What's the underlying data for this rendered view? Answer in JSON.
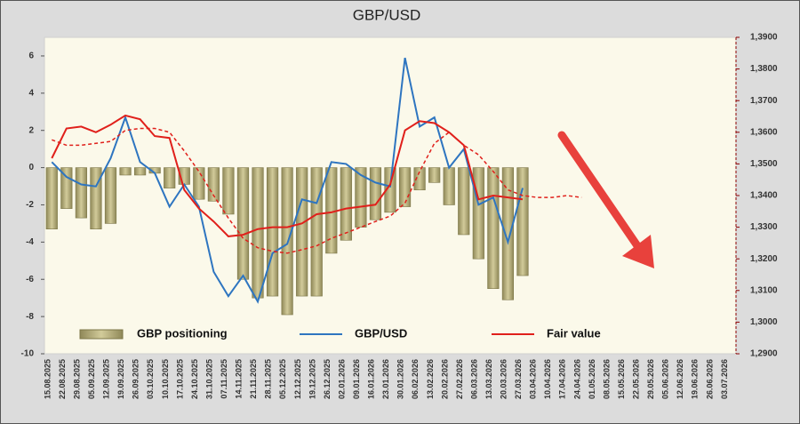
{
  "chart_data": {
    "type": "bar_line",
    "title": "GBP/USD",
    "categories": [
      "15.08.2025",
      "22.08.2025",
      "29.08.2025",
      "05.09.2025",
      "12.09.2025",
      "19.09.2025",
      "26.09.2025",
      "03.10.2025",
      "10.10.2025",
      "17.10.2025",
      "24.10.2025",
      "31.10.2025",
      "07.11.2025",
      "14.11.2025",
      "21.11.2025",
      "28.11.2025",
      "05.12.2025",
      "12.12.2025",
      "19.12.2025",
      "26.12.2025",
      "02.01.2026",
      "09.01.2026",
      "16.01.2026",
      "23.01.2026",
      "30.01.2026",
      "06.02.2026",
      "13.02.2026",
      "20.02.2026",
      "27.02.2026",
      "06.03.2026",
      "13.03.2026",
      "20.03.2026",
      "27.03.2026",
      "03.04.2026",
      "10.04.2026",
      "17.04.2026",
      "24.04.2026",
      "01.05.2026",
      "08.05.2026",
      "15.05.2026",
      "22.05.2026",
      "29.05.2026",
      "05.06.2026",
      "12.06.2026",
      "19.06.2026",
      "26.06.2026",
      "03.07.2026"
    ],
    "series": [
      {
        "name": "GBP positioning",
        "type": "bar",
        "color": "#b5ad78",
        "axis": "y",
        "values": [
          -3.3,
          -2.2,
          -2.7,
          -3.3,
          -3.0,
          -0.4,
          -0.4,
          -0.3,
          -1.1,
          -0.9,
          -1.7,
          -1.8,
          -2.5,
          -6.0,
          -7.0,
          -6.9,
          -7.9,
          -6.9,
          -6.9,
          -4.6,
          -3.9,
          -3.2,
          -2.8,
          -2.4,
          -2.1,
          -1.2,
          -0.8,
          -2.0,
          -3.6,
          -4.9,
          -6.5,
          -7.1,
          -5.8,
          null,
          null,
          null,
          null,
          null,
          null,
          null,
          null,
          null,
          null,
          null,
          null,
          null,
          null
        ]
      },
      {
        "name": "GBP/USD",
        "type": "line",
        "color": "#2e75c0",
        "axis": "y2",
        "values": [
          1.3506,
          1.3459,
          1.3435,
          1.3429,
          1.3518,
          1.3647,
          1.3506,
          1.3471,
          1.3365,
          1.3435,
          1.3365,
          1.3159,
          1.3082,
          1.3147,
          1.3065,
          1.3218,
          1.3247,
          1.3388,
          1.3376,
          1.3506,
          1.35,
          1.3465,
          1.3441,
          1.3429,
          1.3835,
          1.3618,
          1.3647,
          1.3488,
          1.3547,
          1.3371,
          1.3394,
          1.3253,
          1.3424,
          null,
          null,
          null,
          null,
          null,
          null,
          null,
          null,
          null,
          null,
          null,
          null,
          null,
          null
        ]
      },
      {
        "name": "Fair value",
        "type": "line",
        "color": "#e0201b",
        "axis": "y2",
        "values": [
          1.3518,
          1.3612,
          1.3618,
          1.36,
          1.3624,
          1.3653,
          1.3641,
          1.3588,
          1.3582,
          1.3418,
          1.3359,
          1.3318,
          1.3271,
          1.3276,
          1.3294,
          1.33,
          1.33,
          1.3312,
          1.3341,
          1.3347,
          1.3359,
          1.3365,
          1.3371,
          1.3435,
          1.3606,
          1.3635,
          1.3629,
          1.36,
          1.3559,
          1.3388,
          1.34,
          1.3394,
          1.3388,
          null,
          null,
          null,
          null,
          null,
          null,
          null,
          null,
          null,
          null,
          null,
          null,
          null,
          null
        ]
      },
      {
        "type": "line",
        "dashed": true,
        "color": "#e0201b",
        "axis": "y2",
        "values": [
          1.3576,
          1.3559,
          1.3559,
          1.3565,
          1.3571,
          1.3606,
          1.3612,
          1.3612,
          1.36,
          1.3541,
          1.3476,
          1.34,
          1.3329,
          1.3265,
          1.3235,
          1.3224,
          1.3218,
          1.3229,
          1.3241,
          1.3265,
          1.3282,
          1.33,
          1.3318,
          1.3335,
          1.3376,
          1.3476,
          1.3565,
          1.36,
          1.3559,
          1.3529,
          1.3476,
          1.3418,
          1.34,
          1.3394,
          1.3394,
          1.34,
          1.3394,
          null,
          null,
          null,
          null,
          null,
          null,
          null,
          null,
          null,
          null
        ]
      }
    ],
    "ylim": [
      -10,
      7
    ],
    "yticks": [
      -10,
      -8,
      -6,
      -4,
      -2,
      0,
      2,
      4,
      6
    ],
    "y2lim": [
      1.29,
      1.39
    ],
    "y2ticks": [
      {
        "value": 1.29,
        "label": "1,2900"
      },
      {
        "value": 1.3,
        "label": "1,3000"
      },
      {
        "value": 1.31,
        "label": "1,3100"
      },
      {
        "value": 1.32,
        "label": "1,3200"
      },
      {
        "value": 1.33,
        "label": "1,3300"
      },
      {
        "value": 1.34,
        "label": "1,3400"
      },
      {
        "value": 1.35,
        "label": "1,3500"
      },
      {
        "value": 1.36,
        "label": "1,3600"
      },
      {
        "value": 1.37,
        "label": "1,3700"
      },
      {
        "value": 1.38,
        "label": "1,3800"
      },
      {
        "value": 1.39,
        "label": "1,3900"
      }
    ],
    "grid": false,
    "legend": "bottom"
  }
}
